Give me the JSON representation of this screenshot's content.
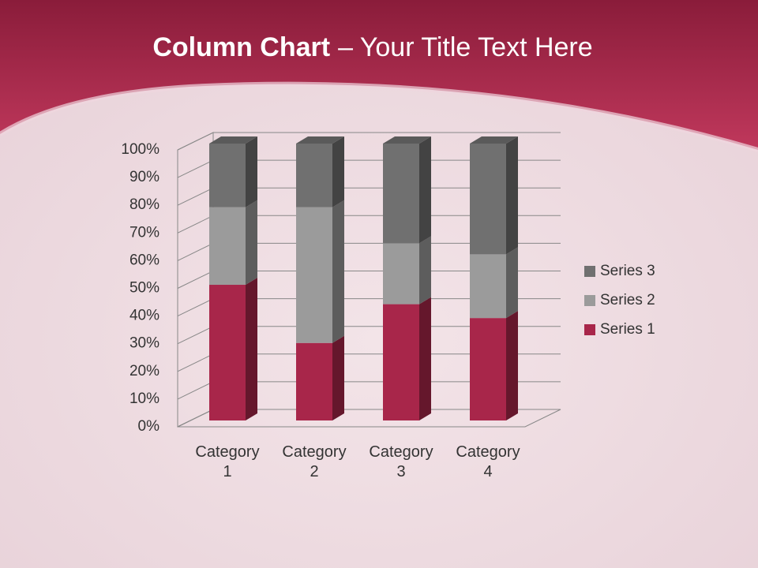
{
  "chart_data": {
    "type": "stacked_bar_3d",
    "title": "Column Chart",
    "title_rest": "– Your Title Text Here",
    "categories": [
      "Category 1",
      "Category 2",
      "Category 3",
      "Category 4"
    ],
    "series": [
      {
        "name": "Series 1",
        "color": "#a8264a",
        "values": [
          49,
          28,
          42,
          37
        ]
      },
      {
        "name": "Series 2",
        "color": "#9b9b9b",
        "values": [
          28,
          49,
          22,
          23
        ]
      },
      {
        "name": "Series 3",
        "color": "#707070",
        "values": [
          23,
          23,
          36,
          40
        ]
      }
    ],
    "ylim": [
      0,
      100
    ],
    "yticks": [
      {
        "value": 0,
        "label": "0%"
      },
      {
        "value": 10,
        "label": "10%"
      },
      {
        "value": 20,
        "label": "20%"
      },
      {
        "value": 30,
        "label": "30%"
      },
      {
        "value": 40,
        "label": "40%"
      },
      {
        "value": 50,
        "label": "50%"
      },
      {
        "value": 60,
        "label": "60%"
      },
      {
        "value": 70,
        "label": "70%"
      },
      {
        "value": 80,
        "label": "80%"
      },
      {
        "value": 90,
        "label": "90%"
      },
      {
        "value": 100,
        "label": "100%"
      }
    ],
    "grid": true,
    "legend": "right"
  }
}
